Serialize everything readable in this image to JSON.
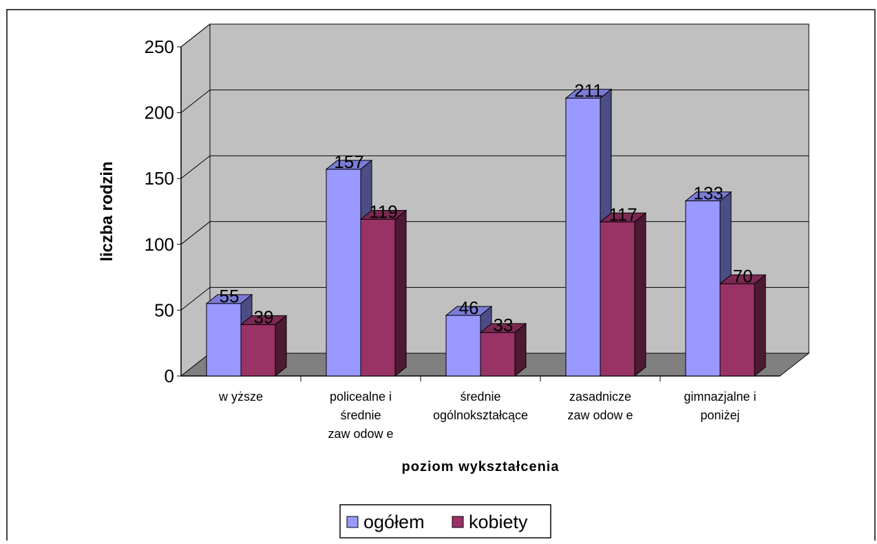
{
  "chart_data": {
    "type": "bar",
    "title": "",
    "xlabel": "poziom wykształcenia",
    "ylabel": "liczba rodzin",
    "ylim": [
      0,
      250
    ],
    "yticks": [
      0,
      50,
      100,
      150,
      200,
      250
    ],
    "grid": true,
    "three_d": true,
    "legend_placement": "bottom",
    "categories": [
      [
        "w yższe"
      ],
      [
        "policealne i",
        "średnie",
        "zaw odow e"
      ],
      [
        "średnie",
        "ogólnokształcące"
      ],
      [
        "zasadnicze",
        "zaw odow e"
      ],
      [
        "gimnazjalne i",
        "poniżej"
      ]
    ],
    "series": [
      {
        "name": "ogółem",
        "values": [
          55,
          157,
          46,
          211,
          133
        ],
        "color": "#9999ff",
        "side_color": "#4d4d85",
        "top_color": "#7b7bd6"
      },
      {
        "name": "kobiety",
        "values": [
          39,
          119,
          33,
          117,
          70
        ],
        "color": "#993366",
        "side_color": "#4d1a33",
        "top_color": "#7a2952"
      }
    ],
    "colors": {
      "wall": "#c0c0c0",
      "floor": "#808080",
      "axis": "#000000"
    }
  }
}
